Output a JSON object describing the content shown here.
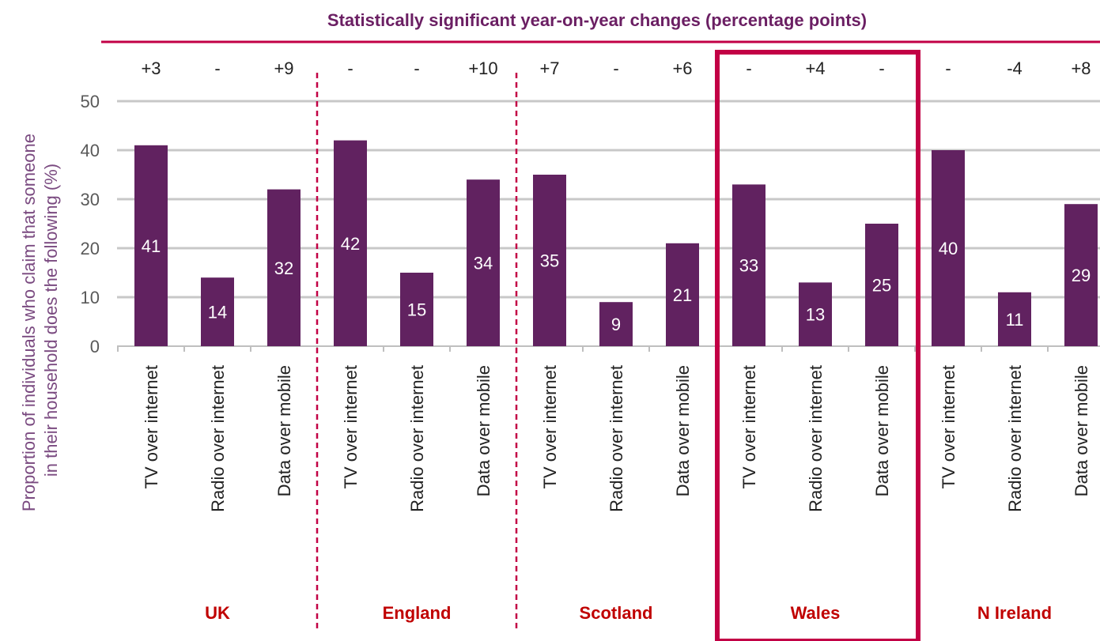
{
  "header": {
    "title": "Statistically significant year-on-year changes (percentage points)"
  },
  "colors": {
    "bar": "#612260",
    "accent": "#c20045",
    "title": "#6b1f63",
    "grid": "#c8c8c8",
    "axis_text": "#595959",
    "ylabel_text": "#7a4a80",
    "group_label": "#c00000"
  },
  "chart_data": {
    "type": "bar",
    "ylabel": "Proportion of individuals who claim that someone in their household does the following (%)",
    "ylim": [
      0,
      50
    ],
    "yticks": [
      "0",
      "10",
      "20",
      "30",
      "40",
      "50"
    ],
    "grid": true,
    "highlighted_group": "Wales",
    "groups": [
      {
        "name": "UK",
        "bars": [
          {
            "label": "TV over internet",
            "value": 41,
            "change": "+3"
          },
          {
            "label": "Radio over internet",
            "value": 14,
            "change": "-"
          },
          {
            "label": "Data over mobile",
            "value": 32,
            "change": "+9"
          }
        ]
      },
      {
        "name": "England",
        "bars": [
          {
            "label": "TV over internet",
            "value": 42,
            "change": "-"
          },
          {
            "label": "Radio over internet",
            "value": 15,
            "change": "-"
          },
          {
            "label": "Data over mobile",
            "value": 34,
            "change": "+10"
          }
        ]
      },
      {
        "name": "Scotland",
        "bars": [
          {
            "label": "TV over internet",
            "value": 35,
            "change": "+7"
          },
          {
            "label": "Radio over internet",
            "value": 9,
            "change": "-"
          },
          {
            "label": "Data over mobile",
            "value": 21,
            "change": "+6"
          }
        ]
      },
      {
        "name": "Wales",
        "bars": [
          {
            "label": "TV over internet",
            "value": 33,
            "change": "-"
          },
          {
            "label": "Radio over internet",
            "value": 13,
            "change": "+4"
          },
          {
            "label": "Data over mobile",
            "value": 25,
            "change": "-"
          }
        ]
      },
      {
        "name": "N Ireland",
        "bars": [
          {
            "label": "TV over internet",
            "value": 40,
            "change": "-"
          },
          {
            "label": "Radio over internet",
            "value": 11,
            "change": "-4"
          },
          {
            "label": "Data over mobile",
            "value": 29,
            "change": "+8"
          }
        ]
      }
    ]
  }
}
